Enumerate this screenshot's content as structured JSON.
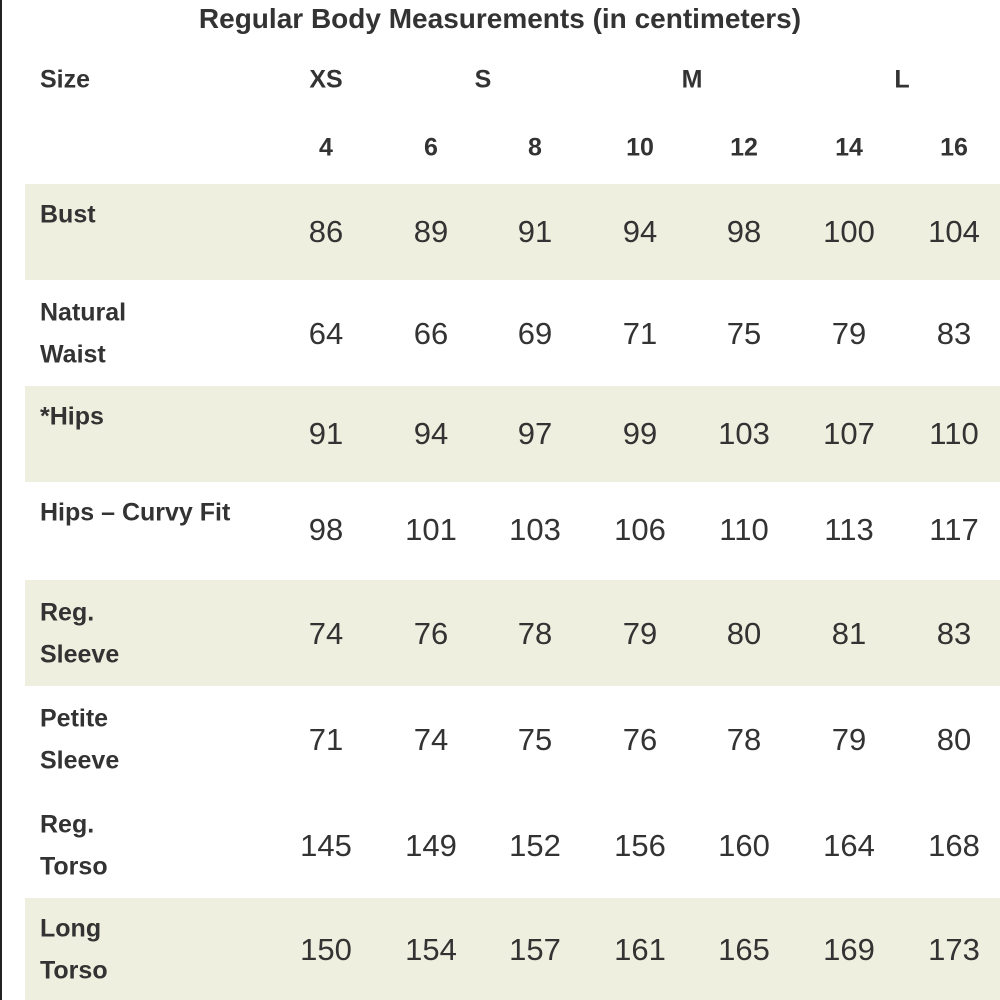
{
  "title": "Regular Body Measurements (in centimeters)",
  "header": {
    "label": "Size",
    "groups": [
      "XS",
      "S",
      "M",
      "L"
    ],
    "sizes": [
      "4",
      "6",
      "8",
      "10",
      "12",
      "14",
      "16"
    ]
  },
  "table": {
    "rows": [
      {
        "label": [
          "Bust"
        ],
        "values": [
          "86",
          "89",
          "91",
          "94",
          "98",
          "100",
          "104"
        ]
      },
      {
        "label": [
          "Natural",
          "Waist"
        ],
        "values": [
          "64",
          "66",
          "69",
          "71",
          "75",
          "79",
          "83"
        ]
      },
      {
        "label": [
          "*Hips"
        ],
        "values": [
          "91",
          "94",
          "97",
          "99",
          "103",
          "107",
          "110"
        ]
      },
      {
        "label": [
          "Hips – Curvy Fit"
        ],
        "values": [
          "98",
          "101",
          "103",
          "106",
          "110",
          "113",
          "117"
        ]
      },
      {
        "label": [
          "Reg.",
          "Sleeve"
        ],
        "values": [
          "74",
          "76",
          "78",
          "79",
          "80",
          "81",
          "83"
        ]
      },
      {
        "label": [
          "Petite",
          "Sleeve"
        ],
        "values": [
          "71",
          "74",
          "75",
          "76",
          "78",
          "79",
          "80"
        ]
      },
      {
        "label": [
          "Reg.",
          "Torso"
        ],
        "values": [
          "145",
          "149",
          "152",
          "156",
          "160",
          "164",
          "168"
        ]
      },
      {
        "label": [
          "Long",
          "Torso"
        ],
        "values": [
          "150",
          "154",
          "157",
          "161",
          "165",
          "169",
          "173"
        ]
      }
    ]
  }
}
